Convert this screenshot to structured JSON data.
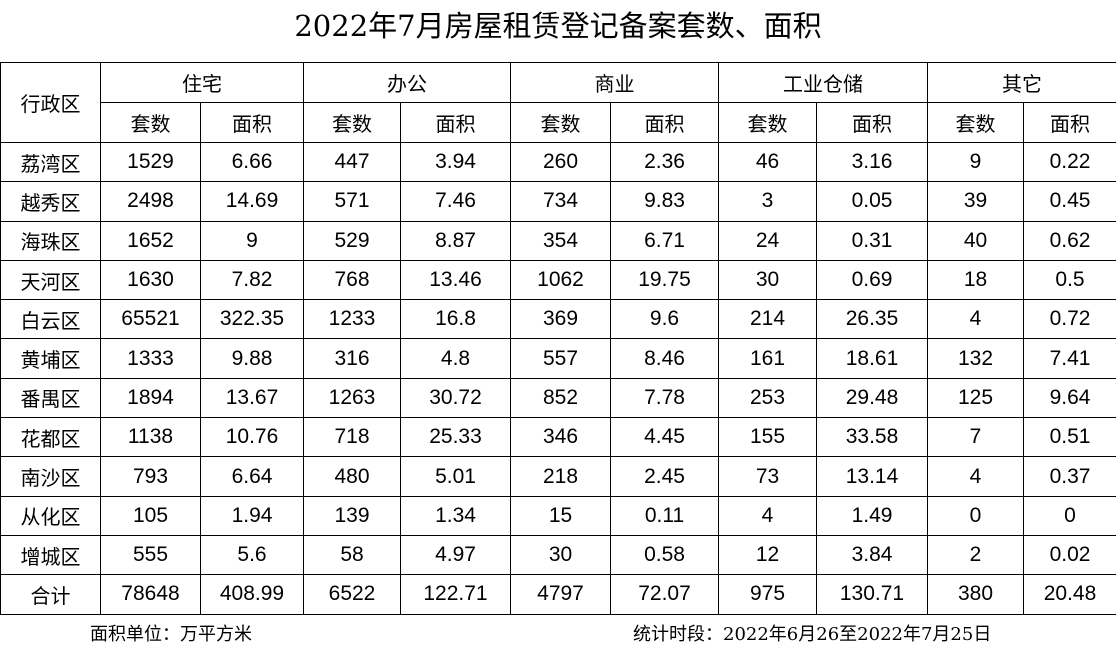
{
  "title": "2022年7月房屋租赁登记备案套数、面积",
  "table": {
    "corner": "行政区",
    "groups": [
      "住宅",
      "办公",
      "商业",
      "工业仓储",
      "其它"
    ],
    "subheaders": [
      "套数",
      "面积",
      "套数",
      "面积",
      "套数",
      "面积",
      "套数",
      "面积",
      "套数",
      "面积"
    ],
    "rows": [
      [
        "荔湾区",
        1529,
        6.66,
        447,
        3.94,
        260,
        2.36,
        46,
        3.16,
        9,
        0.22
      ],
      [
        "越秀区",
        2498,
        14.69,
        571,
        7.46,
        734,
        9.83,
        3,
        0.05,
        39,
        0.45
      ],
      [
        "海珠区",
        1652,
        9,
        529,
        8.87,
        354,
        6.71,
        24,
        0.31,
        40,
        0.62
      ],
      [
        "天河区",
        1630,
        7.82,
        768,
        13.46,
        1062,
        19.75,
        30,
        0.69,
        18,
        0.5
      ],
      [
        "白云区",
        65521,
        322.35,
        1233,
        16.8,
        369,
        9.6,
        214,
        26.35,
        4,
        0.72
      ],
      [
        "黄埔区",
        1333,
        9.88,
        316,
        4.8,
        557,
        8.46,
        161,
        18.61,
        132,
        7.41
      ],
      [
        "番禺区",
        1894,
        13.67,
        1263,
        30.72,
        852,
        7.78,
        253,
        29.48,
        125,
        9.64
      ],
      [
        "花都区",
        1138,
        10.76,
        718,
        25.33,
        346,
        4.45,
        155,
        33.58,
        7,
        0.51
      ],
      [
        "南沙区",
        793,
        6.64,
        480,
        5.01,
        218,
        2.45,
        73,
        13.14,
        4,
        0.37
      ],
      [
        "从化区",
        105,
        1.94,
        139,
        1.34,
        15,
        0.11,
        4,
        1.49,
        0,
        0
      ],
      [
        "增城区",
        555,
        5.6,
        58,
        4.97,
        30,
        0.58,
        12,
        3.84,
        2,
        0.02
      ],
      [
        "合计",
        78648,
        408.99,
        6522,
        122.71,
        4797,
        72.07,
        975,
        130.71,
        380,
        20.48
      ]
    ]
  },
  "footer": {
    "unit": "面积单位：万平方米",
    "period": "统计时段：2022年6月26至2022年7月25日"
  }
}
